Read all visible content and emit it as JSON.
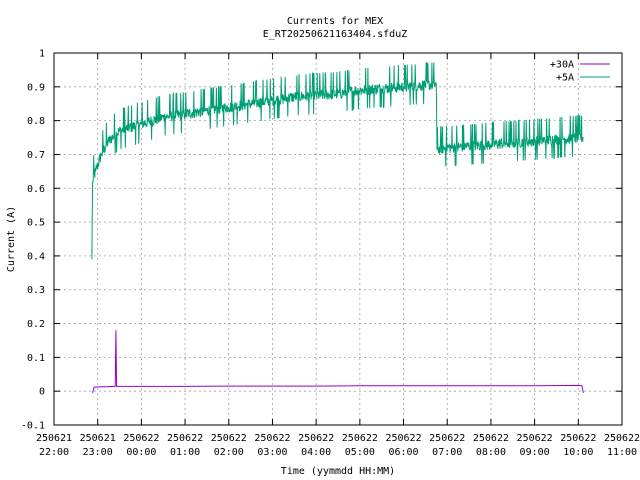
{
  "chart_data": {
    "type": "line",
    "title": "Currents for MEX",
    "subtitle": "E_RT20250621163404.sfduZ",
    "xlabel": "Time (yymmdd HH:MM)",
    "ylabel": "Current (A)",
    "ylim": [
      -0.1,
      1.0
    ],
    "yticks": [
      "-0.1",
      "0",
      "0.1",
      "0.2",
      "0.3",
      "0.4",
      "0.5",
      "0.6",
      "0.7",
      "0.8",
      "0.9",
      "1"
    ],
    "xlim": [
      "250621 22:00",
      "250622 11:00"
    ],
    "xticks": [
      {
        "date": "250621",
        "time": "22:00"
      },
      {
        "date": "250621",
        "time": "23:00"
      },
      {
        "date": "250622",
        "time": "00:00"
      },
      {
        "date": "250622",
        "time": "01:00"
      },
      {
        "date": "250622",
        "time": "02:00"
      },
      {
        "date": "250622",
        "time": "03:00"
      },
      {
        "date": "250622",
        "time": "04:00"
      },
      {
        "date": "250622",
        "time": "05:00"
      },
      {
        "date": "250622",
        "time": "06:00"
      },
      {
        "date": "250622",
        "time": "07:00"
      },
      {
        "date": "250622",
        "time": "08:00"
      },
      {
        "date": "250622",
        "time": "09:00"
      },
      {
        "date": "250622",
        "time": "10:00"
      },
      {
        "date": "250622",
        "time": "11:00"
      }
    ],
    "grid": true,
    "legend_position": "top-right",
    "series": [
      {
        "name": "+30A",
        "color": "#9400d3",
        "points": [
          [
            "250621 22:53",
            -0.005
          ],
          [
            "250621 22:55",
            0.012
          ],
          [
            "250621 23:10",
            0.013
          ],
          [
            "250621 23:24",
            0.014
          ],
          [
            "250621 23:25",
            0.18
          ],
          [
            "250621 23:26",
            0.014
          ],
          [
            "250622 00:00",
            0.014
          ],
          [
            "250622 01:00",
            0.014
          ],
          [
            "250622 02:00",
            0.015
          ],
          [
            "250622 03:00",
            0.015
          ],
          [
            "250622 04:00",
            0.015
          ],
          [
            "250622 05:00",
            0.016
          ],
          [
            "250622 06:00",
            0.016
          ],
          [
            "250622 07:00",
            0.016
          ],
          [
            "250622 08:00",
            0.016
          ],
          [
            "250622 09:00",
            0.016
          ],
          [
            "250622 10:00",
            0.017
          ],
          [
            "250622 10:05",
            0.016
          ],
          [
            "250622 10:07",
            -0.005
          ]
        ]
      },
      {
        "name": "+5A",
        "color": "#009e73",
        "points": [
          [
            "250621 22:52",
            0.39
          ],
          [
            "250621 22:53",
            0.62
          ],
          [
            "250621 22:57",
            0.65
          ],
          [
            "250621 23:05",
            0.7
          ],
          [
            "250621 23:15",
            0.74
          ],
          [
            "250621 23:30",
            0.77
          ],
          [
            "250622 00:00",
            0.79
          ],
          [
            "250622 00:30",
            0.81
          ],
          [
            "250622 01:00",
            0.82
          ],
          [
            "250622 01:30",
            0.83
          ],
          [
            "250622 02:00",
            0.84
          ],
          [
            "250622 02:30",
            0.85
          ],
          [
            "250622 03:00",
            0.86
          ],
          [
            "250622 03:30",
            0.87
          ],
          [
            "250622 04:00",
            0.875
          ],
          [
            "250622 04:30",
            0.88
          ],
          [
            "250622 05:00",
            0.89
          ],
          [
            "250622 05:30",
            0.895
          ],
          [
            "250622 06:00",
            0.9
          ],
          [
            "250622 06:30",
            0.905
          ],
          [
            "250622 06:45",
            0.908
          ],
          [
            "250622 06:46",
            0.715
          ],
          [
            "250622 07:00",
            0.72
          ],
          [
            "250622 07:30",
            0.725
          ],
          [
            "250622 08:00",
            0.73
          ],
          [
            "250622 08:30",
            0.735
          ],
          [
            "250622 09:00",
            0.74
          ],
          [
            "250622 09:30",
            0.745
          ],
          [
            "250622 10:00",
            0.75
          ],
          [
            "250622 10:07",
            0.75
          ]
        ],
        "noise_amplitude": 0.035
      }
    ]
  }
}
